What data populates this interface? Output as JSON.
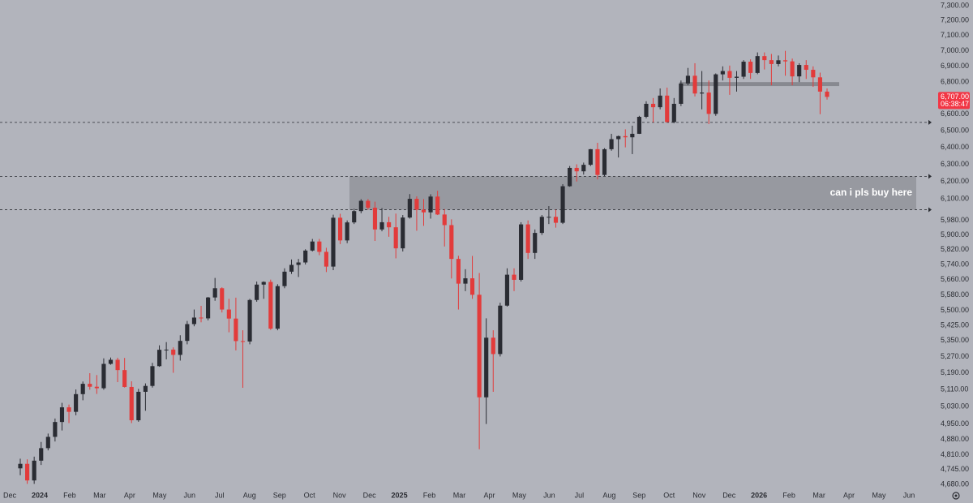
{
  "chart_data": {
    "type": "candlestick",
    "log_scale": true,
    "ylim": [
      4680,
      7300
    ],
    "yticks": [
      {
        "value": 7300,
        "label": "7,300.00"
      },
      {
        "value": 7200,
        "label": "7,200.00"
      },
      {
        "value": 7100,
        "label": "7,100.00"
      },
      {
        "value": 7000,
        "label": "7,000.00"
      },
      {
        "value": 6900,
        "label": "6,900.00"
      },
      {
        "value": 6800,
        "label": "6,800.00"
      },
      {
        "value": 6600,
        "label": "6,600.00"
      },
      {
        "value": 6500,
        "label": "6,500.00"
      },
      {
        "value": 6400,
        "label": "6,400.00"
      },
      {
        "value": 6300,
        "label": "6,300.00"
      },
      {
        "value": 6200,
        "label": "6,200.00"
      },
      {
        "value": 6100,
        "label": "6,100.00"
      },
      {
        "value": 5980,
        "label": "5,980.00"
      },
      {
        "value": 5900,
        "label": "5,900.00"
      },
      {
        "value": 5820,
        "label": "5,820.00"
      },
      {
        "value": 5740,
        "label": "5,740.00"
      },
      {
        "value": 5660,
        "label": "5,660.00"
      },
      {
        "value": 5580,
        "label": "5,580.00"
      },
      {
        "value": 5500,
        "label": "5,500.00"
      },
      {
        "value": 5425,
        "label": "5,425.00"
      },
      {
        "value": 5350,
        "label": "5,350.00"
      },
      {
        "value": 5270,
        "label": "5,270.00"
      },
      {
        "value": 5190,
        "label": "5,190.00"
      },
      {
        "value": 5110,
        "label": "5,110.00"
      },
      {
        "value": 5030,
        "label": "5,030.00"
      },
      {
        "value": 4950,
        "label": "4,950.00"
      },
      {
        "value": 4880,
        "label": "4,880.00"
      },
      {
        "value": 4810,
        "label": "4,810.00"
      },
      {
        "value": 4745,
        "label": "4,745.00"
      },
      {
        "value": 4680,
        "label": "4,680.00"
      }
    ],
    "xtick_labels": [
      "Dec",
      "2024",
      "Feb",
      "Mar",
      "Apr",
      "May",
      "Jun",
      "Jul",
      "Aug",
      "Sep",
      "Oct",
      "Nov",
      "Dec",
      "2025",
      "Feb",
      "Mar",
      "Apr",
      "May",
      "Jun",
      "Jul",
      "Aug",
      "Sep",
      "Oct",
      "Nov",
      "Dec",
      "2026",
      "Feb",
      "Mar",
      "Apr",
      "May",
      "Jun"
    ],
    "up_color": "#2a2c33",
    "down_color": "#e23b3b",
    "open": [
      4750,
      4770,
      4697,
      4784,
      4840,
      4891,
      4959,
      5027,
      5006,
      5089,
      5138,
      5124,
      5117,
      5234,
      5254,
      5204,
      5123,
      4967,
      5100,
      5128,
      5223,
      5303,
      5304,
      5278,
      5347,
      5431,
      5464,
      5460,
      5567,
      5615,
      5505,
      5459,
      5346,
      5344,
      5554,
      5634,
      5648,
      5408,
      5626,
      5702,
      5738,
      5751,
      5815,
      5864,
      5808,
      5729,
      5995,
      5870,
      5969,
      6032,
      6090,
      6051,
      5930,
      5970,
      5942,
      5827,
      5996,
      6101,
      6040,
      6025,
      6114,
      6013,
      5954,
      5770,
      5639,
      5667,
      5581,
      5074,
      5363,
      5282,
      5525,
      5686,
      5659,
      5958,
      5802,
      5911,
      6000,
      6000,
      5967,
      6173,
      6279,
      6259,
      6297,
      6389,
      6238,
      6389,
      6449,
      6467,
      6460,
      6481,
      6584,
      6664,
      6643,
      6715,
      6552,
      6664,
      6791,
      6840,
      6728,
      6734,
      6602,
      6849,
      6870,
      6827,
      6834,
      6930,
      6858,
      6966,
      6940,
      6915,
      6939,
      6932,
      6836,
      6909,
      6878,
      6830,
      6740
    ],
    "high": [
      4793,
      4790,
      4802,
      4868,
      4906,
      4975,
      5048,
      5040,
      5111,
      5149,
      5189,
      5180,
      5261,
      5265,
      5264,
      5263,
      5150,
      5114,
      5140,
      5239,
      5325,
      5341,
      5315,
      5375,
      5447,
      5505,
      5524,
      5570,
      5669,
      5620,
      5560,
      5566,
      5400,
      5560,
      5650,
      5651,
      5660,
      5636,
      5720,
      5767,
      5770,
      5822,
      5878,
      5878,
      5830,
      6012,
      6017,
      5980,
      6045,
      6099,
      6100,
      6085,
      6049,
      6000,
      6018,
      6010,
      6128,
      6115,
      6100,
      6127,
      6147,
      6043,
      5986,
      5787,
      5715,
      5786,
      5695,
      5460,
      5400,
      5540,
      5720,
      5720,
      5970,
      5980,
      5930,
      6010,
      6060,
      6040,
      6185,
      6290,
      6300,
      6310,
      6390,
      6427,
      6395,
      6481,
      6470,
      6508,
      6530,
      6590,
      6680,
      6700,
      6760,
      6765,
      6700,
      6810,
      6890,
      6920,
      6870,
      6810,
      6855,
      6900,
      6905,
      6870,
      6940,
      6945,
      6990,
      6990,
      6980,
      6970,
      7000,
      6950,
      6920,
      6940,
      6900,
      6860,
      6760
    ],
    "low": [
      4720,
      4682,
      4682,
      4765,
      4830,
      4870,
      4920,
      4954,
      4990,
      5060,
      5110,
      5090,
      5110,
      5230,
      5146,
      5120,
      4954,
      4960,
      5011,
      5120,
      5220,
      5256,
      5191,
      5250,
      5330,
      5420,
      5440,
      5450,
      5550,
      5490,
      5390,
      5300,
      5119,
      5330,
      5545,
      5560,
      5402,
      5400,
      5615,
      5690,
      5674,
      5740,
      5810,
      5790,
      5700,
      5710,
      5850,
      5855,
      5960,
      6020,
      6040,
      5867,
      5920,
      5890,
      5773,
      5810,
      5990,
      5923,
      5950,
      5990,
      6010,
      5837,
      5666,
      5505,
      5600,
      5560,
      4835,
      4950,
      5100,
      5270,
      5520,
      5600,
      5650,
      5770,
      5770,
      5900,
      5960,
      5940,
      5960,
      6170,
      6200,
      6240,
      6290,
      6212,
      6230,
      6380,
      6340,
      6400,
      6360,
      6480,
      6575,
      6550,
      6630,
      6550,
      6545,
      6650,
      6780,
      6710,
      6630,
      6540,
      6590,
      6810,
      6720,
      6740,
      6820,
      6820,
      6850,
      6880,
      6780,
      6900,
      6840,
      6780,
      6800,
      6820,
      6770,
      6600,
      6690
    ],
    "close": [
      4770,
      4697,
      4784,
      4840,
      4891,
      4959,
      5027,
      5006,
      5089,
      5138,
      5124,
      5117,
      5234,
      5254,
      5204,
      5123,
      4967,
      5100,
      5128,
      5223,
      5303,
      5304,
      5278,
      5347,
      5431,
      5464,
      5460,
      5567,
      5615,
      5505,
      5459,
      5346,
      5344,
      5554,
      5634,
      5648,
      5408,
      5626,
      5702,
      5738,
      5751,
      5815,
      5864,
      5808,
      5729,
      5995,
      5870,
      5969,
      6032,
      6090,
      6051,
      5930,
      5970,
      5942,
      5827,
      5996,
      6101,
      6040,
      6025,
      6114,
      6013,
      5954,
      5770,
      5639,
      5667,
      5581,
      5074,
      5363,
      5282,
      5525,
      5686,
      5659,
      5958,
      5802,
      5911,
      6000,
      6000,
      5967,
      6173,
      6279,
      6259,
      6297,
      6389,
      6238,
      6389,
      6449,
      6467,
      6460,
      6481,
      6584,
      6664,
      6643,
      6715,
      6552,
      6664,
      6791,
      6840,
      6728,
      6734,
      6602,
      6849,
      6870,
      6827,
      6834,
      6930,
      6858,
      6966,
      6940,
      6915,
      6939,
      6932,
      6836,
      6909,
      6878,
      6830,
      6740,
      6707
    ],
    "levels": [
      6550,
      6230,
      6040
    ],
    "zones": [
      {
        "high": 6230,
        "low": 6040
      },
      {
        "high": 6800,
        "low": 6775
      }
    ],
    "annotation": "can i pls buy here",
    "price_label": {
      "value": 6707,
      "label": "6,707.00"
    },
    "countdown": "06:38:47",
    "price_label_color": "#f23645"
  }
}
